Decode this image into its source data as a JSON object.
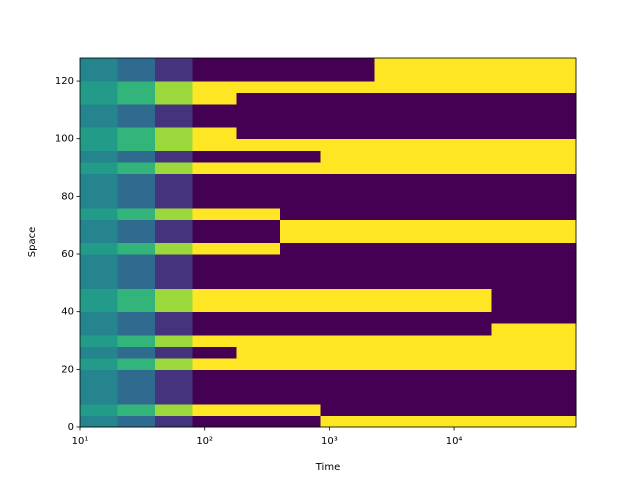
{
  "chart_data": {
    "type": "heatmap",
    "xlabel": "Time",
    "ylabel": "Space",
    "xscale": "log",
    "colormap": "viridis",
    "vmin": -1,
    "vmax": 1,
    "x": [
      10,
      20,
      40,
      80,
      180,
      400,
      850,
      2300,
      20000,
      95000
    ],
    "y": [
      0,
      4,
      8,
      12,
      16,
      20,
      24,
      28,
      32,
      36,
      40,
      44,
      48,
      52,
      56,
      60,
      64,
      68,
      72,
      76,
      80,
      84,
      88,
      92,
      96,
      100,
      104,
      108,
      112,
      116,
      120,
      124,
      128
    ],
    "values": [
      [
        -0.1,
        -0.3,
        -0.7,
        -1,
        -1,
        -1,
        1,
        1,
        1
      ],
      [
        0.1,
        0.3,
        0.7,
        1,
        1,
        1,
        -1,
        -1,
        -1
      ],
      [
        -0.1,
        -0.3,
        -0.7,
        -1,
        -1,
        -1,
        -1,
        -1,
        -1
      ],
      [
        -0.1,
        -0.3,
        -0.7,
        -1,
        -1,
        -1,
        -1,
        -1,
        -1
      ],
      [
        -0.1,
        -0.3,
        -0.7,
        -1,
        -1,
        -1,
        -1,
        -1,
        -1
      ],
      [
        0.1,
        0.3,
        0.7,
        1,
        1,
        1,
        1,
        1,
        1
      ],
      [
        -0.1,
        -0.3,
        -0.7,
        -1,
        1,
        1,
        1,
        1,
        1
      ],
      [
        0.1,
        0.3,
        0.7,
        1,
        1,
        1,
        1,
        1,
        1
      ],
      [
        -0.1,
        -0.3,
        -0.7,
        -1,
        -1,
        -1,
        -1,
        -1,
        1
      ],
      [
        -0.1,
        -0.3,
        -0.7,
        -1,
        -1,
        -1,
        -1,
        -1,
        -1
      ],
      [
        0.1,
        0.3,
        0.7,
        1,
        1,
        1,
        1,
        1,
        -1
      ],
      [
        0.1,
        0.3,
        0.7,
        1,
        1,
        1,
        1,
        1,
        -1
      ],
      [
        -0.1,
        -0.3,
        -0.7,
        -1,
        -1,
        -1,
        -1,
        -1,
        -1
      ],
      [
        -0.1,
        -0.3,
        -0.7,
        -1,
        -1,
        -1,
        -1,
        -1,
        -1
      ],
      [
        -0.1,
        -0.3,
        -0.7,
        -1,
        -1,
        -1,
        -1,
        -1,
        -1
      ],
      [
        0.1,
        0.3,
        0.7,
        1,
        1,
        -1,
        -1,
        -1,
        -1
      ],
      [
        -0.1,
        -0.3,
        -0.7,
        -1,
        -1,
        1,
        1,
        1,
        1
      ],
      [
        -0.1,
        -0.3,
        -0.7,
        -1,
        -1,
        1,
        1,
        1,
        1
      ],
      [
        0.1,
        0.3,
        0.7,
        1,
        1,
        -1,
        -1,
        -1,
        -1
      ],
      [
        -0.1,
        -0.3,
        -0.7,
        -1,
        -1,
        -1,
        -1,
        -1,
        -1
      ],
      [
        -0.1,
        -0.3,
        -0.7,
        -1,
        -1,
        -1,
        -1,
        -1,
        -1
      ],
      [
        -0.1,
        -0.3,
        -0.7,
        -1,
        -1,
        -1,
        -1,
        -1,
        -1
      ],
      [
        0.1,
        0.3,
        0.7,
        1,
        1,
        1,
        1,
        1,
        1
      ],
      [
        -0.1,
        -0.3,
        -0.7,
        -1,
        -1,
        -1,
        1,
        1,
        1
      ],
      [
        0.1,
        0.3,
        0.7,
        1,
        1,
        1,
        1,
        1,
        1
      ],
      [
        0.1,
        0.3,
        0.7,
        1,
        -1,
        -1,
        -1,
        -1,
        -1
      ],
      [
        -0.1,
        -0.3,
        -0.7,
        -1,
        -1,
        -1,
        -1,
        -1,
        -1
      ],
      [
        -0.1,
        -0.3,
        -0.7,
        -1,
        -1,
        -1,
        -1,
        -1,
        -1
      ],
      [
        0.1,
        0.3,
        0.7,
        1,
        -1,
        -1,
        -1,
        -1,
        -1
      ],
      [
        0.1,
        0.3,
        0.7,
        1,
        1,
        1,
        1,
        1,
        1
      ],
      [
        -0.1,
        -0.3,
        -0.7,
        -1,
        -1,
        -1,
        -1,
        1,
        1
      ],
      [
        -0.1,
        -0.3,
        -0.7,
        -1,
        -1,
        -1,
        -1,
        1,
        1
      ]
    ],
    "xlim": [
      10,
      95000
    ],
    "ylim": [
      0,
      128
    ],
    "xticks": [
      {
        "value": 10,
        "label": "10¹"
      },
      {
        "value": 100,
        "label": "10²"
      },
      {
        "value": 1000,
        "label": "10³"
      },
      {
        "value": 10000,
        "label": "10⁴"
      }
    ],
    "yticks": [
      0,
      20,
      40,
      60,
      80,
      100,
      120
    ]
  }
}
